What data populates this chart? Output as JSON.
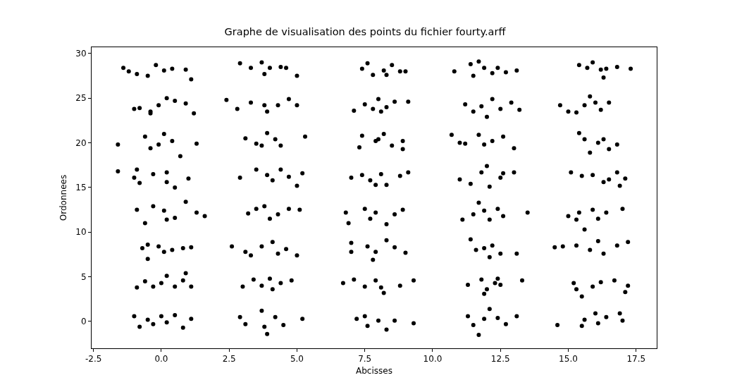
{
  "chart_data": {
    "type": "scatter",
    "title": "Graphe de visualisation des points du fichier fourty.arff",
    "xlabel": "Abcisses",
    "ylabel": "Ordonnees",
    "xlim": [
      -2.57,
      18.26
    ],
    "ylim": [
      -3.0,
      30.7
    ],
    "xticks": [
      -2.5,
      {
        "value": 0,
        "label": "0.0"
      },
      2.5,
      {
        "value": 5,
        "label": "5.0"
      },
      7.5,
      {
        "value": 10,
        "label": "10.0"
      },
      12.5,
      {
        "value": 15,
        "label": "15.0"
      },
      17.5
    ],
    "yticks": [
      0,
      5,
      10,
      15,
      20,
      25,
      30
    ],
    "grid": false,
    "marker": "circle",
    "series": [
      {
        "color": "#000000",
        "x": [
          -1.4,
          -1.2,
          -0.9,
          -0.5,
          -0.2,
          0.1,
          0.4,
          0.9,
          1.1,
          2.9,
          3.3,
          3.7,
          3.8,
          4.0,
          4.4,
          4.6,
          5.0,
          7.4,
          7.6,
          7.8,
          8.2,
          8.5,
          8.8,
          9.0,
          8.3,
          10.8,
          11.4,
          11.7,
          11.9,
          12.2,
          12.4,
          12.7,
          13.1,
          11.5,
          15.4,
          15.7,
          15.9,
          16.2,
          16.4,
          16.8,
          17.3,
          16.3,
          -1.0,
          -0.8,
          -0.4,
          -0.1,
          0.2,
          0.5,
          0.9,
          1.2,
          -0.4,
          2.4,
          2.8,
          3.3,
          3.8,
          3.9,
          4.3,
          4.7,
          5.0,
          7.1,
          7.5,
          7.8,
          8.0,
          8.3,
          8.6,
          9.1,
          8.1,
          11.2,
          11.5,
          11.8,
          12.0,
          12.2,
          12.5,
          12.9,
          13.2,
          14.7,
          15.0,
          15.6,
          15.8,
          16.0,
          16.2,
          16.5,
          15.3,
          -1.6,
          -0.6,
          -0.4,
          0.1,
          0.4,
          0.7,
          1.3,
          -0.1,
          3.1,
          3.5,
          3.9,
          3.7,
          4.2,
          4.4,
          5.3,
          7.4,
          7.3,
          7.9,
          8.2,
          8.5,
          8.9,
          8.9,
          8.0,
          10.7,
          11.0,
          11.7,
          11.9,
          12.2,
          12.6,
          13.0,
          11.2,
          15.4,
          15.6,
          15.8,
          16.1,
          16.3,
          16.5,
          16.8,
          -1.6,
          -1.0,
          -0.9,
          -0.8,
          -0.3,
          0.2,
          0.2,
          0.5,
          1.0,
          2.9,
          3.5,
          3.9,
          4.1,
          4.4,
          4.7,
          5.0,
          5.2,
          7.0,
          7.4,
          7.7,
          8.1,
          8.3,
          8.8,
          9.1,
          7.9,
          11.0,
          11.4,
          11.8,
          12.0,
          12.1,
          12.5,
          12.6,
          13.0,
          15.1,
          15.5,
          15.9,
          16.3,
          16.5,
          16.9,
          16.8,
          17.1,
          -0.9,
          -0.6,
          -0.3,
          0.1,
          0.2,
          0.5,
          0.9,
          1.3,
          1.6,
          3.2,
          3.5,
          3.8,
          4.0,
          4.3,
          4.7,
          5.1,
          6.8,
          6.9,
          7.5,
          7.9,
          8.3,
          8.6,
          8.9,
          7.7,
          11.1,
          11.5,
          11.9,
          12.1,
          12.4,
          12.6,
          13.5,
          11.7,
          15.0,
          15.4,
          15.6,
          15.9,
          16.1,
          16.4,
          17.0,
          15.3,
          -0.7,
          -0.5,
          -0.5,
          -0.1,
          0.1,
          0.4,
          0.8,
          1.1,
          2.6,
          3.1,
          3.3,
          3.7,
          4.1,
          4.3,
          4.6,
          5.0,
          7.0,
          7.0,
          7.6,
          7.8,
          7.9,
          8.3,
          8.6,
          9.0,
          11.4,
          11.6,
          11.9,
          12.1,
          12.2,
          12.5,
          13.1,
          14.5,
          14.8,
          15.3,
          15.8,
          16.1,
          16.3,
          16.8,
          17.2,
          -0.9,
          -0.6,
          -0.3,
          0.0,
          0.2,
          0.5,
          0.8,
          0.9,
          1.1,
          3.0,
          3.4,
          3.7,
          4.0,
          4.1,
          4.4,
          4.8,
          6.7,
          7.1,
          7.5,
          7.9,
          8.1,
          8.2,
          8.8,
          9.3,
          11.3,
          11.8,
          12.0,
          12.3,
          12.4,
          12.5,
          13.3,
          11.9,
          15.2,
          15.3,
          15.5,
          15.9,
          16.2,
          16.7,
          17.1,
          17.2,
          -1.0,
          -0.8,
          -0.5,
          -0.3,
          0.0,
          0.2,
          0.5,
          0.8,
          1.1,
          2.9,
          3.1,
          3.7,
          3.8,
          3.9,
          4.2,
          4.5,
          5.2,
          7.2,
          7.5,
          7.6,
          8.0,
          8.3,
          8.6,
          9.3,
          11.3,
          11.5,
          11.7,
          11.9,
          12.1,
          12.4,
          12.7,
          13.1,
          14.6,
          15.5,
          15.6,
          16.0,
          16.1,
          16.4,
          16.9,
          17.0
        ],
        "values": [
          28.4,
          28.0,
          27.7,
          27.5,
          28.7,
          28.1,
          28.3,
          28.2,
          27.1,
          28.9,
          28.4,
          29.0,
          27.7,
          28.4,
          28.5,
          28.4,
          27.5,
          28.3,
          28.9,
          27.6,
          28.1,
          28.7,
          28.0,
          28.0,
          27.6,
          28.0,
          28.8,
          29.1,
          28.4,
          27.8,
          28.4,
          27.9,
          28.1,
          27.5,
          28.7,
          28.4,
          29.0,
          28.2,
          28.3,
          28.5,
          28.3,
          27.3,
          23.8,
          23.9,
          23.5,
          24.2,
          25.0,
          24.7,
          24.4,
          23.3,
          23.3,
          24.8,
          23.8,
          24.5,
          24.2,
          23.5,
          24.2,
          24.9,
          24.2,
          23.6,
          24.3,
          23.8,
          24.9,
          24.0,
          24.6,
          24.6,
          23.5,
          24.3,
          23.5,
          24.1,
          22.9,
          24.9,
          23.8,
          24.5,
          23.7,
          24.2,
          23.5,
          24.2,
          25.2,
          24.5,
          23.7,
          24.5,
          23.4,
          19.8,
          20.7,
          19.4,
          21.0,
          20.2,
          18.5,
          19.9,
          19.8,
          20.5,
          19.9,
          21.1,
          19.7,
          20.4,
          19.7,
          20.7,
          20.8,
          19.5,
          20.2,
          21.0,
          19.7,
          20.2,
          19.3,
          20.4,
          20.9,
          20.0,
          20.9,
          19.8,
          20.2,
          20.7,
          19.4,
          19.9,
          21.1,
          20.4,
          18.9,
          20.0,
          20.4,
          19.3,
          19.8,
          16.8,
          16.1,
          17.0,
          15.5,
          16.5,
          16.7,
          15.6,
          15.0,
          16.0,
          16.1,
          17.0,
          16.4,
          15.8,
          17.0,
          16.2,
          15.2,
          16.6,
          16.1,
          16.4,
          15.8,
          16.5,
          15.3,
          16.3,
          16.7,
          15.3,
          15.9,
          15.4,
          16.7,
          17.4,
          15.1,
          16.1,
          16.6,
          16.7,
          16.7,
          16.3,
          16.4,
          15.6,
          15.9,
          15.2,
          16.7,
          16.0,
          12.5,
          11.0,
          12.9,
          12.4,
          11.4,
          11.6,
          13.4,
          12.2,
          11.8,
          12.1,
          12.6,
          12.9,
          11.5,
          12.0,
          12.6,
          12.5,
          12.2,
          11.0,
          12.6,
          12.2,
          10.9,
          12.0,
          12.5,
          11.5,
          11.4,
          12.0,
          12.4,
          11.4,
          12.6,
          11.8,
          12.2,
          13.3,
          11.8,
          12.2,
          10.3,
          12.5,
          11.5,
          12.2,
          12.6,
          11.4,
          8.2,
          7.0,
          8.6,
          8.4,
          7.8,
          8.0,
          8.2,
          8.3,
          8.4,
          7.8,
          7.4,
          8.4,
          8.9,
          7.6,
          8.1,
          7.4,
          7.8,
          8.8,
          8.4,
          6.9,
          7.8,
          9.1,
          8.3,
          7.7,
          9.2,
          8.0,
          8.2,
          7.2,
          8.5,
          7.6,
          7.6,
          8.3,
          8.4,
          8.5,
          8.0,
          9.0,
          7.6,
          8.5,
          8.9,
          3.8,
          4.5,
          3.9,
          4.3,
          5.1,
          3.9,
          4.6,
          5.4,
          3.9,
          3.9,
          4.7,
          4.0,
          4.8,
          3.6,
          4.3,
          4.6,
          4.3,
          4.7,
          3.9,
          4.6,
          3.8,
          3.2,
          4.0,
          4.6,
          4.1,
          4.7,
          3.6,
          4.3,
          4.8,
          4.1,
          4.6,
          3.1,
          4.3,
          3.6,
          2.8,
          3.9,
          4.4,
          4.6,
          3.3,
          4.0,
          0.6,
          -0.6,
          0.2,
          -0.3,
          0.6,
          -0.1,
          0.7,
          -0.7,
          0.3,
          0.5,
          -0.3,
          1.2,
          -0.6,
          -1.4,
          0.5,
          -0.4,
          0.3,
          0.3,
          0.6,
          -0.5,
          0.1,
          -0.9,
          0.1,
          -0.2,
          0.6,
          -0.4,
          -1.5,
          0.3,
          1.4,
          0.4,
          -0.3,
          0.6,
          -0.4,
          -0.5,
          0.2,
          0.9,
          -0.2,
          0.5,
          0.9,
          0.1
        ]
      }
    ]
  }
}
